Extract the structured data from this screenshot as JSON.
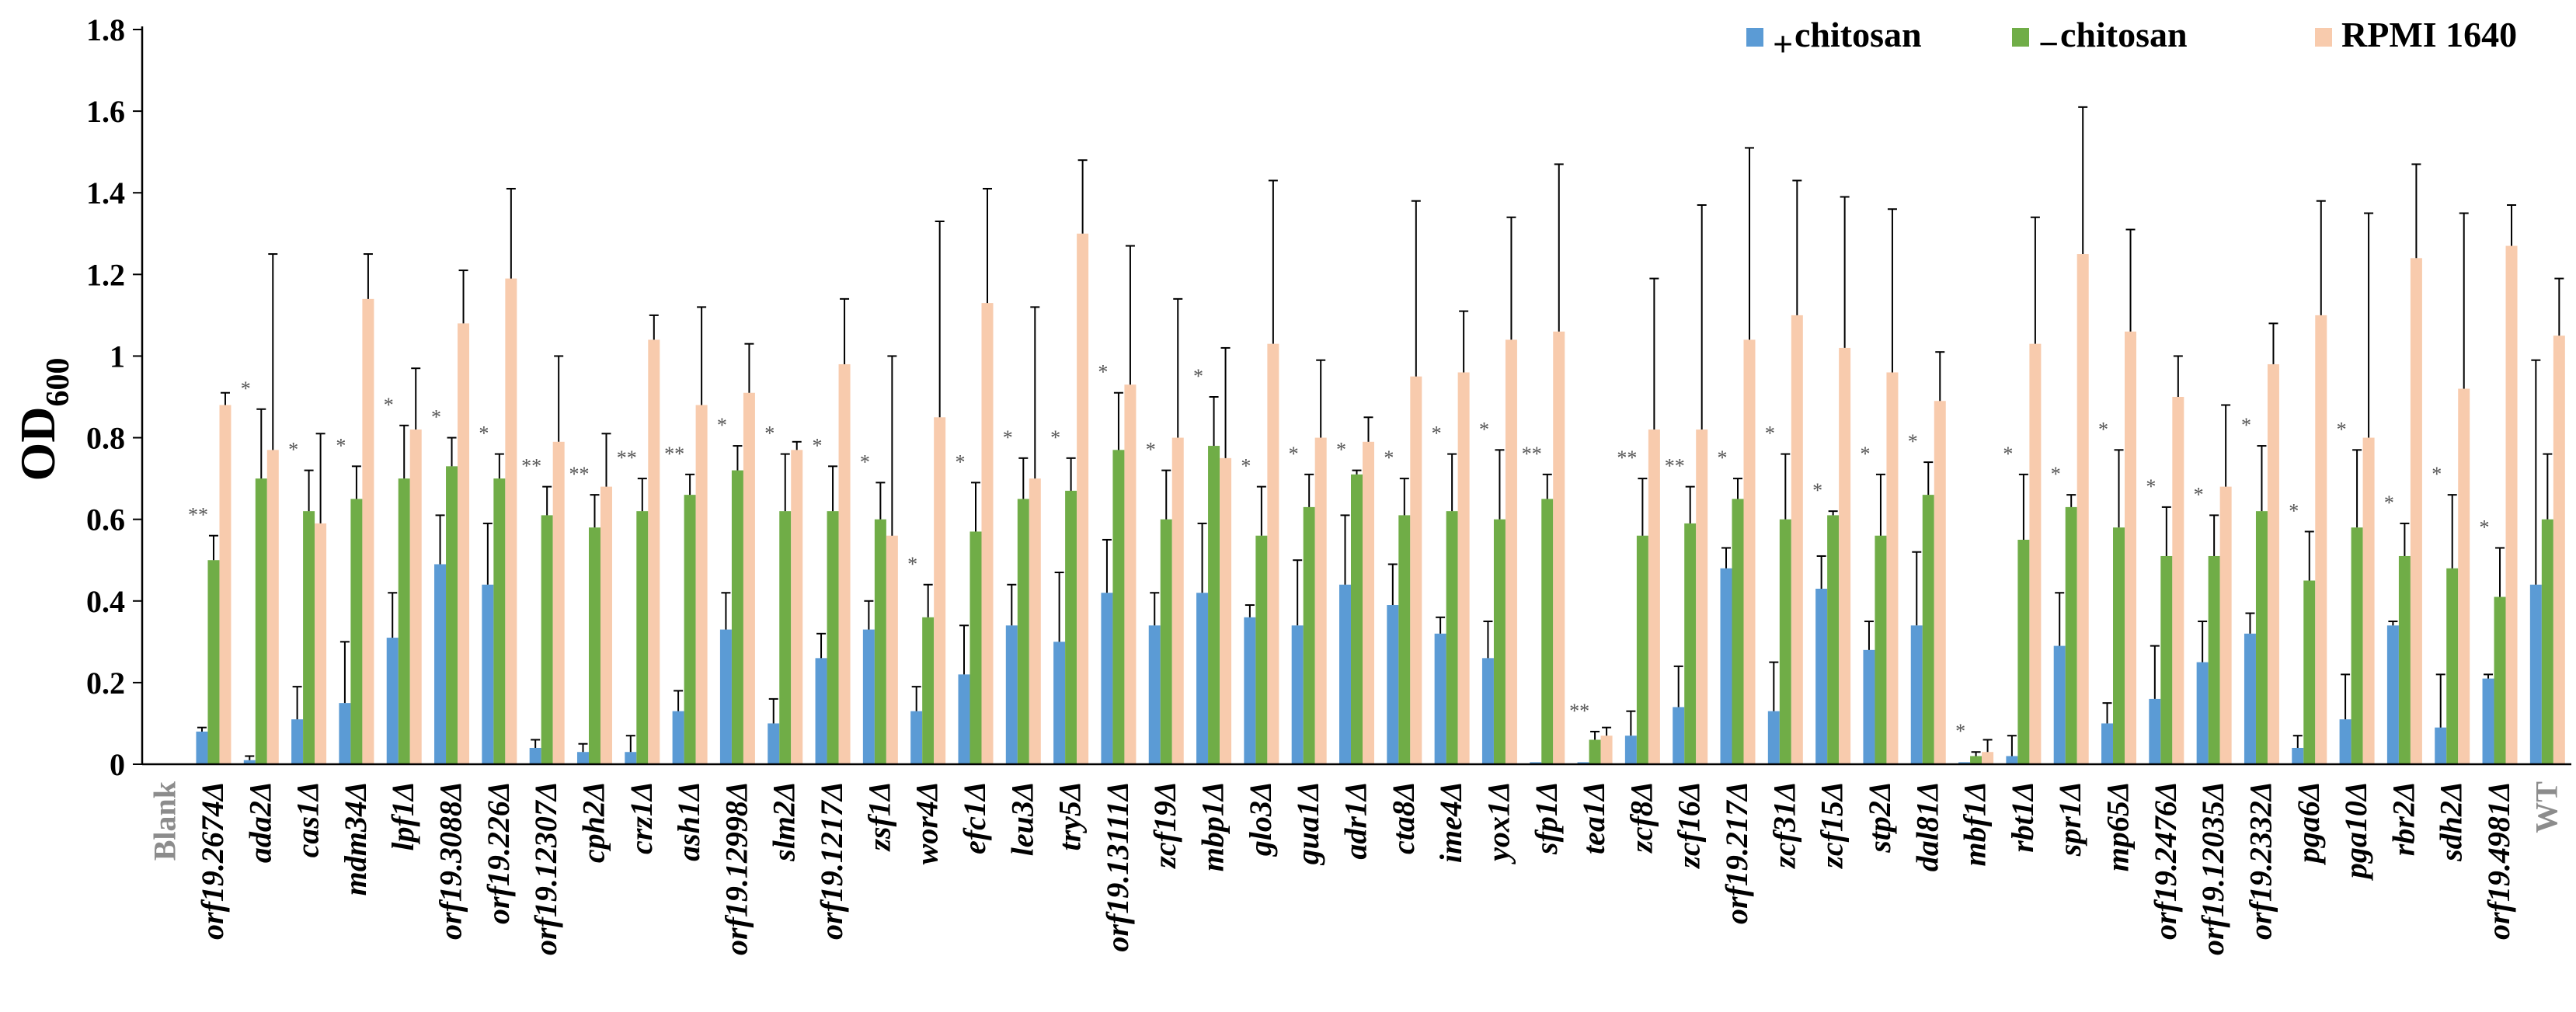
{
  "chart_data": {
    "type": "bar",
    "title": "",
    "xlabel": "",
    "ylabel": "OD",
    "ylabel_subscript": "600",
    "ylim": [
      0,
      1.8
    ],
    "yticks": [
      "0",
      "0.2",
      "0.4",
      "0.6",
      "0.8",
      "1",
      "1.2",
      "1.4",
      "1.6",
      "1.8"
    ],
    "legend": {
      "position": "top-right",
      "items": [
        {
          "prefix": "+",
          "label": "chitosan"
        },
        {
          "prefix": "−",
          "label": "chitosan"
        },
        {
          "prefix": "",
          "label": "RPMI 1640"
        }
      ]
    },
    "categories": [
      "Blank",
      "orf19.2674Δ",
      "ada2Δ",
      "cas1Δ",
      "mdm34Δ",
      "lpf1Δ",
      "orf19.3088Δ",
      "orf19.226Δ",
      "orf19.12307Δ",
      "cph2Δ",
      "crz1Δ",
      "ash1Δ",
      "orf19.12998Δ",
      "slm2Δ",
      "orf19.1217Δ",
      "zsf1Δ",
      "wor4Δ",
      "efc1Δ",
      "leu3Δ",
      "try5Δ",
      "orf19.13111Δ",
      "zcf19Δ",
      "mbp1Δ",
      "glo3Δ",
      "gua1Δ",
      "adr1Δ",
      "cta8Δ",
      "ime4Δ",
      "yox1Δ",
      "sfp1Δ",
      "tea1Δ",
      "zcf8Δ",
      "zcf16Δ",
      "orf19.217Δ",
      "zcf31Δ",
      "zcf15Δ",
      "stp2Δ",
      "dal81Δ",
      "mbf1Δ",
      "rbt1Δ",
      "spr1Δ",
      "mp65Δ",
      "orf19.2476Δ",
      "orf19.12035Δ",
      "orf19.2332Δ",
      "pga6Δ",
      "pga10Δ",
      "rbr2Δ",
      "sdh2Δ",
      "orf19.4981Δ",
      "WT"
    ],
    "grey_categories": [
      "Blank",
      "WT"
    ],
    "series": [
      {
        "name": "+ chitosan",
        "color": "#5b9bd5",
        "values": [
          0,
          0.08,
          0.01,
          0.11,
          0.15,
          0.31,
          0.49,
          0.44,
          0.04,
          0.03,
          0.03,
          0.13,
          0.33,
          0.1,
          0.26,
          0.33,
          0.13,
          0.22,
          0.34,
          0.3,
          0.42,
          0.34,
          0.42,
          0.36,
          0.34,
          0.44,
          0.39,
          0.32,
          0.26,
          0.005,
          0.005,
          0.07,
          0.14,
          0.48,
          0.13,
          0.43,
          0.28,
          0.34,
          0.005,
          0.02,
          0.29,
          0.1,
          0.16,
          0.25,
          0.32,
          0.04,
          0.11,
          0.34,
          0.09,
          0.21,
          0.44
        ],
        "errors": [
          0,
          0.01,
          0.01,
          0.08,
          0.15,
          0.11,
          0.12,
          0.15,
          0.02,
          0.02,
          0.04,
          0.05,
          0.09,
          0.06,
          0.06,
          0.07,
          0.06,
          0.12,
          0.1,
          0.17,
          0.13,
          0.08,
          0.17,
          0.03,
          0.16,
          0.17,
          0.1,
          0.04,
          0.09,
          0,
          0,
          0.06,
          0.1,
          0.05,
          0.12,
          0.08,
          0.07,
          0.18,
          0,
          0.05,
          0.13,
          0.05,
          0.13,
          0.1,
          0.05,
          0.03,
          0.11,
          0.01,
          0.13,
          0.01,
          0.55
        ]
      },
      {
        "name": "− chitosan",
        "color": "#70ad47",
        "values": [
          0,
          0.5,
          0.7,
          0.62,
          0.65,
          0.7,
          0.73,
          0.7,
          0.61,
          0.58,
          0.62,
          0.66,
          0.72,
          0.62,
          0.62,
          0.6,
          0.36,
          0.57,
          0.65,
          0.67,
          0.77,
          0.6,
          0.78,
          0.56,
          0.63,
          0.71,
          0.61,
          0.62,
          0.6,
          0.65,
          0.06,
          0.56,
          0.59,
          0.65,
          0.6,
          0.61,
          0.56,
          0.66,
          0.02,
          0.55,
          0.63,
          0.58,
          0.51,
          0.51,
          0.62,
          0.45,
          0.58,
          0.51,
          0.48,
          0.41,
          0.6
        ],
        "errors": [
          0,
          0.06,
          0.17,
          0.1,
          0.08,
          0.13,
          0.07,
          0.06,
          0.07,
          0.08,
          0.08,
          0.05,
          0.06,
          0.14,
          0.11,
          0.09,
          0.08,
          0.12,
          0.1,
          0.08,
          0.14,
          0.12,
          0.12,
          0.12,
          0.08,
          0.01,
          0.09,
          0.14,
          0.17,
          0.06,
          0.02,
          0.14,
          0.09,
          0.05,
          0.16,
          0.01,
          0.15,
          0.08,
          0.01,
          0.16,
          0.03,
          0.19,
          0.12,
          0.1,
          0.16,
          0.12,
          0.19,
          0.08,
          0.18,
          0.12,
          0.16
        ]
      },
      {
        "name": "RPMI 1640",
        "color": "#f8cbad",
        "values": [
          0,
          0.88,
          0.77,
          0.59,
          1.14,
          0.82,
          1.08,
          1.19,
          0.79,
          0.68,
          1.04,
          0.88,
          0.91,
          0.77,
          0.98,
          0.56,
          0.85,
          1.13,
          0.7,
          1.3,
          0.93,
          0.8,
          0.75,
          1.03,
          0.8,
          0.79,
          0.95,
          0.96,
          1.04,
          1.06,
          0.07,
          0.82,
          0.82,
          1.04,
          1.1,
          1.02,
          0.96,
          0.89,
          0.03,
          1.03,
          1.25,
          1.06,
          0.9,
          0.68,
          0.98,
          1.1,
          0.8,
          1.24,
          0.92,
          1.27,
          1.05
        ],
        "errors": [
          0,
          0.03,
          0.48,
          0.22,
          0.11,
          0.15,
          0.13,
          0.22,
          0.21,
          0.13,
          0.06,
          0.24,
          0.12,
          0.02,
          0.16,
          0.44,
          0.48,
          0.28,
          0.42,
          0.18,
          0.34,
          0.34,
          0.27,
          0.4,
          0.19,
          0.06,
          0.43,
          0.15,
          0.3,
          0.41,
          0.02,
          0.37,
          0.55,
          0.47,
          0.33,
          0.37,
          0.4,
          0.12,
          0.03,
          0.31,
          0.36,
          0.25,
          0.1,
          0.2,
          0.1,
          0.28,
          0.55,
          0.23,
          0.43,
          0.1,
          0.14
        ]
      }
    ],
    "annotations": [
      "",
      "**",
      "*",
      "*",
      "*",
      "*",
      "*",
      "*",
      "**",
      "**",
      "**",
      "**",
      "*",
      "*",
      "*",
      "*",
      "*",
      "*",
      "*",
      "*",
      "*",
      "*",
      "*",
      "*",
      "*",
      "*",
      "*",
      "*",
      "*",
      "**",
      "**",
      "**",
      "**",
      "*",
      "*",
      "*",
      "*",
      "*",
      "*",
      "*",
      "*",
      "*",
      "*",
      "*",
      "*",
      "*",
      "*",
      "*",
      "*",
      "*",
      ""
    ]
  }
}
